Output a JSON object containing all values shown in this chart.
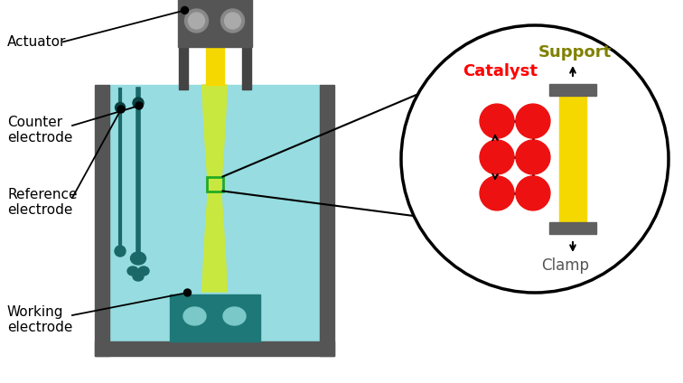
{
  "fig_width": 7.56,
  "fig_height": 4.24,
  "dpi": 100,
  "bg_color": "#ffffff",
  "tank_color": "#555555",
  "liquid_color": "#96dce0",
  "specimen_color": "#c8e840",
  "yellow_rod_color": "#f5d800",
  "teal_dark": "#1a6868",
  "teal_mid": "#2a9090",
  "actuator_color": "#555555",
  "actuator_circle_outer": "#888888",
  "actuator_circle_inner": "#aaaaaa",
  "working_electrode_color": "#1e7878",
  "working_circle_color": "#7ac8c8",
  "catalyst_color": "#ee1111",
  "clamp_color": "#606060",
  "support_color": "#f5d800",
  "support_label_color": "#808000",
  "counter_teal": "#1a6868",
  "ref_teal": "#1a6868",
  "labels": {
    "actuator": "Actuator",
    "counter": "Counter\nelectrode",
    "reference": "Reference\nelectrode",
    "working": "Working\nelectrode",
    "catalyst": "Catalyst",
    "support": "Support",
    "clamp": "Clamp"
  }
}
